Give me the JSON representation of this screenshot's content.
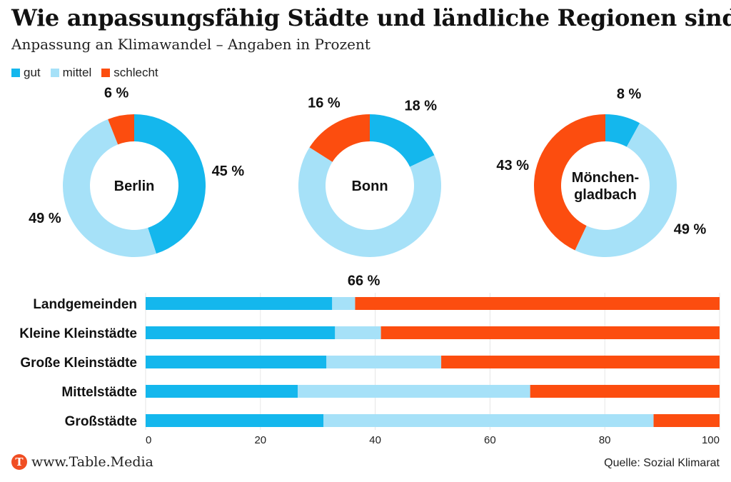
{
  "title": "Wie anpassungsfähig Städte und ländliche Regionen sind",
  "subtitle": "Anpassung an Klimawandel – Angaben in Prozent",
  "colors": {
    "gut": "#14b7ed",
    "mittel": "#a6e1f8",
    "schlecht": "#fc4d0f"
  },
  "legend": [
    {
      "key": "gut",
      "label": "gut"
    },
    {
      "key": "mittel",
      "label": "mittel"
    },
    {
      "key": "schlecht",
      "label": "schlecht"
    }
  ],
  "footer": {
    "logo_letter": "T",
    "site": "www.Table.Media",
    "source": "Quelle: Sozial Klimarat"
  },
  "chart_data": [
    {
      "type": "pie",
      "subtype": "donut",
      "title": "Berlin",
      "slices": [
        {
          "name": "gut",
          "value": 45,
          "label": "45 %"
        },
        {
          "name": "mittel",
          "value": 49,
          "label": "49 %"
        },
        {
          "name": "schlecht",
          "value": 6,
          "label": "6 %"
        }
      ]
    },
    {
      "type": "pie",
      "subtype": "donut",
      "title": "Bonn",
      "slices": [
        {
          "name": "gut",
          "value": 18,
          "label": "18 %"
        },
        {
          "name": "mittel",
          "value": 66,
          "label": "66 %"
        },
        {
          "name": "schlecht",
          "value": 16,
          "label": "16 %"
        }
      ]
    },
    {
      "type": "pie",
      "subtype": "donut",
      "title": "Mönchen-gladbach",
      "title_lines": [
        "Mönchen-",
        "gladbach"
      ],
      "slices": [
        {
          "name": "gut",
          "value": 8,
          "label": "8 %"
        },
        {
          "name": "mittel",
          "value": 49,
          "label": "49 %"
        },
        {
          "name": "schlecht",
          "value": 43,
          "label": "43 %"
        }
      ]
    },
    {
      "type": "bar",
      "orientation": "horizontal",
      "stacked": true,
      "categories": [
        "Landgemeinden",
        "Kleine Kleinstädte",
        "Große Kleinstädte",
        "Mittelstädte",
        "Großstädte"
      ],
      "series": [
        {
          "name": "gut",
          "values": [
            32.5,
            33,
            31.5,
            26.5,
            31
          ]
        },
        {
          "name": "mittel",
          "values": [
            4,
            8,
            20,
            40.5,
            57.5
          ]
        },
        {
          "name": "schlecht",
          "values": [
            63.5,
            59,
            48.5,
            33,
            11.5
          ]
        }
      ],
      "xlim": [
        0,
        100
      ],
      "xticks": [
        0,
        20,
        40,
        60,
        80,
        100
      ],
      "xlabel": "",
      "ylabel": ""
    }
  ]
}
